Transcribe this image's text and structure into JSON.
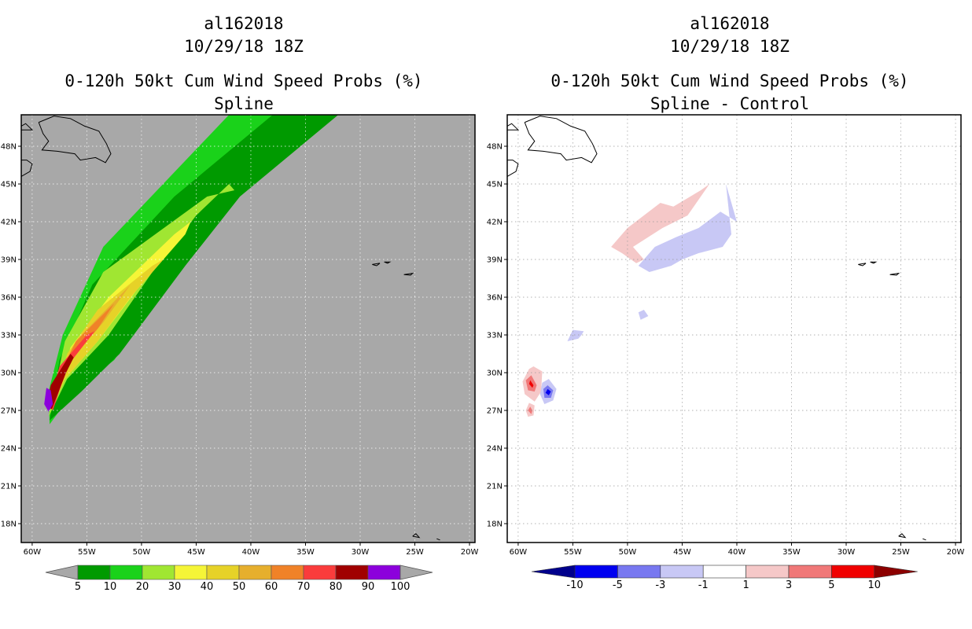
{
  "panels": [
    {
      "storm_id": "al162018",
      "datetime": "10/29/18 18Z",
      "title": "0-120h 50kt Cum Wind Speed Probs (%)",
      "subtitle": "Spline"
    },
    {
      "storm_id": "al162018",
      "datetime": "10/29/18 18Z",
      "title": "0-120h 50kt Cum Wind Speed Probs (%)",
      "subtitle": "Spline - Control"
    }
  ],
  "chart_data": [
    {
      "type": "heatmap",
      "title": "0-120h 50kt Cum Wind Speed Probs (%)",
      "subtitle": "Spline",
      "lon_ticks": [
        "60W",
        "55W",
        "50W",
        "45W",
        "40W",
        "35W",
        "30W",
        "25W",
        "20W"
      ],
      "lat_ticks": [
        "48N",
        "45N",
        "42N",
        "39N",
        "36N",
        "33N",
        "30N",
        "27N",
        "24N",
        "21N",
        "18N"
      ],
      "lon_range": [
        -61,
        -19.5
      ],
      "lat_range": [
        16.5,
        50.5
      ],
      "background": "#a8a8a8",
      "colorbar": {
        "labels": [
          "5",
          "10",
          "20",
          "30",
          "40",
          "50",
          "60",
          "70",
          "80",
          "90",
          "100"
        ],
        "colors": [
          "#009a00",
          "#1ad21a",
          "#a0e632",
          "#f5f537",
          "#e6d228",
          "#e6af2d",
          "#f08228",
          "#fa3c3c",
          "#a00000",
          "#8c00dc"
        ]
      },
      "contours": [
        {
          "level": 5,
          "color": "#1ad21a",
          "lons": [
            -42.0,
            -53.5,
            -57.2,
            -58.5,
            -58.4,
            -56.2,
            -52.5,
            -47.0,
            -43.0,
            -35.0
          ],
          "lats": [
            50.5,
            40.0,
            33.0,
            28.5,
            25.9,
            28.5,
            31.0,
            38.0,
            43.5,
            50.5
          ]
        },
        {
          "level": 10,
          "color": "#009a00",
          "lons": [
            -38.0,
            -47.0,
            -54.5,
            -57.5,
            -58.4,
            -55.5,
            -52.0,
            -46.0,
            -41.0,
            -32.0
          ],
          "lats": [
            50.5,
            44.0,
            37.0,
            31.0,
            26.2,
            28.5,
            31.5,
            38.5,
            44.0,
            50.5
          ]
        },
        {
          "level": 20,
          "color": "#a0e632",
          "lons": [
            -44.0,
            -53.5,
            -57.0,
            -58.5,
            -56.8,
            -53.0,
            -49.0,
            -45.0,
            -42.0,
            -41.5
          ],
          "lats": [
            44.0,
            38.0,
            32.5,
            26.5,
            29.5,
            33.0,
            38.0,
            42.5,
            45.0,
            44.5
          ]
        },
        {
          "level": 30,
          "color": "#f5f537",
          "lons": [
            -47.0,
            -53.0,
            -56.5,
            -58.4,
            -57.0,
            -54.0,
            -50.5,
            -46.0,
            -45.5
          ],
          "lats": [
            41.0,
            36.0,
            32.0,
            26.8,
            29.5,
            32.5,
            36.5,
            41.0,
            42.0
          ]
        },
        {
          "level": 40,
          "color": "#e6d228",
          "lons": [
            -49.0,
            -54.0,
            -56.8,
            -58.3,
            -57.0,
            -54.0,
            -51.0,
            -48.5,
            -48.0
          ],
          "lats": [
            38.5,
            35.0,
            31.5,
            27.0,
            29.5,
            32.5,
            36.0,
            38.5,
            39.0
          ]
        },
        {
          "level": 50,
          "color": "#e6af2d",
          "lons": [
            -51.0,
            -55.5,
            -57.8,
            -58.3,
            -56.5,
            -53.5,
            -51.0,
            -50.0
          ],
          "lats": [
            37.0,
            33.0,
            29.0,
            27.0,
            31.0,
            34.0,
            37.0,
            37.5
          ]
        },
        {
          "level": 60,
          "color": "#f08228",
          "lons": [
            -52.5,
            -56.0,
            -58.0,
            -58.3,
            -56.5,
            -54.0,
            -52.5,
            -52.0
          ],
          "lats": [
            35.5,
            32.5,
            29.0,
            27.0,
            31.0,
            33.5,
            35.5,
            35.8
          ]
        },
        {
          "level": 70,
          "color": "#fa3c3c",
          "lons": [
            -55.0,
            -57.5,
            -58.5,
            -58.1,
            -56.8,
            -55.0,
            -54.3
          ],
          "lats": [
            33.0,
            30.5,
            27.5,
            27.0,
            30.5,
            32.5,
            33.3
          ]
        },
        {
          "level": 80,
          "color": "#a00000",
          "lons": [
            -56.5,
            -58.3,
            -58.7,
            -58.2,
            -56.9,
            -56.2
          ],
          "lats": [
            31.5,
            29.0,
            27.3,
            27.1,
            30.0,
            31.2
          ]
        },
        {
          "level": 90,
          "color": "#8c00dc",
          "lons": [
            -58.7,
            -58.9,
            -58.5,
            -58.1,
            -58.3
          ],
          "lats": [
            28.8,
            27.5,
            26.9,
            27.5,
            28.6
          ]
        }
      ]
    },
    {
      "type": "heatmap",
      "title": "0-120h 50kt Cum Wind Speed Probs (%)",
      "subtitle": "Spline - Control",
      "lon_ticks": [
        "60W",
        "55W",
        "50W",
        "45W",
        "40W",
        "35W",
        "30W",
        "25W",
        "20W"
      ],
      "lat_ticks": [
        "48N",
        "45N",
        "42N",
        "39N",
        "36N",
        "33N",
        "30N",
        "27N",
        "24N",
        "21N",
        "18N"
      ],
      "lon_range": [
        -61,
        -19.5
      ],
      "lat_range": [
        16.5,
        50.5
      ],
      "background": "#ffffff",
      "colorbar": {
        "labels": [
          "-10",
          "-5",
          "-3",
          "-1",
          "1",
          "3",
          "5",
          "10"
        ],
        "colors": [
          "#00008c",
          "#0000f0",
          "#7878f0",
          "#c8c8f5",
          "#ffffff",
          "#f5c8c8",
          "#f07878",
          "#f00000",
          "#8c0000"
        ]
      },
      "contours": [
        {
          "level": 1,
          "color": "#f5c8c8",
          "lons": [
            -45.8,
            -43.3,
            -42.5,
            -44.5,
            -46.8,
            -49.5,
            -48.5,
            -49.2,
            -50.5,
            -51.5,
            -50.0,
            -48.5,
            -47.0
          ],
          "lats": [
            43.2,
            44.5,
            45.0,
            42.5,
            41.5,
            40.0,
            39.0,
            38.7,
            39.5,
            40.0,
            41.5,
            42.5,
            43.5
          ]
        },
        {
          "level": -1,
          "color": "#c8c8f5",
          "lons": [
            -40.0,
            -41.5,
            -43.5,
            -45.5,
            -47.5,
            -49.0,
            -48.0,
            -46.0,
            -45.0,
            -43.5,
            -41.3,
            -40.5,
            -41.0
          ],
          "lats": [
            42.0,
            42.8,
            41.5,
            40.8,
            40.0,
            38.5,
            38.0,
            38.5,
            39.0,
            39.5,
            40.0,
            41.0,
            45.0
          ]
        },
        {
          "level": -1,
          "color": "#c8c8f5",
          "lons": [
            -54.0,
            -55.0,
            -55.5,
            -54.5,
            -54.2
          ],
          "lats": [
            33.3,
            33.4,
            32.5,
            32.7,
            33.0
          ]
        },
        {
          "level": -1,
          "color": "#c8c8f5",
          "lons": [
            -48.5,
            -49.0,
            -48.8,
            -48.1
          ],
          "lats": [
            35.0,
            34.8,
            34.2,
            34.5
          ]
        },
        {
          "level": 3,
          "color": "#f5c8c8",
          "lons": [
            -58.6,
            -57.8,
            -57.9,
            -58.5,
            -59.4,
            -59.6,
            -59.0
          ],
          "lats": [
            30.5,
            30.1,
            28.5,
            27.7,
            28.3,
            29.3,
            30.3
          ]
        },
        {
          "level": 5,
          "color": "#f07878",
          "lons": [
            -58.8,
            -58.3,
            -58.5,
            -59.1,
            -59.3
          ],
          "lats": [
            29.8,
            29.0,
            28.5,
            28.6,
            29.4
          ]
        },
        {
          "level": 10,
          "color": "#f00000",
          "lons": [
            -58.9,
            -58.6,
            -58.7,
            -59.0
          ],
          "lats": [
            29.4,
            29.0,
            28.8,
            29.1
          ]
        },
        {
          "level": -3,
          "color": "#c8c8f5",
          "lons": [
            -57.2,
            -56.5,
            -56.8,
            -57.6,
            -58.0,
            -57.8
          ],
          "lats": [
            29.5,
            28.7,
            27.8,
            27.5,
            28.3,
            29.2
          ]
        },
        {
          "level": -5,
          "color": "#7878f0",
          "lons": [
            -57.3,
            -56.8,
            -57.0,
            -57.6,
            -57.7
          ],
          "lats": [
            29.0,
            28.6,
            28.0,
            28.0,
            28.7
          ]
        },
        {
          "level": -10,
          "color": "#0000f0",
          "lons": [
            -57.3,
            -57.0,
            -57.2,
            -57.5
          ],
          "lats": [
            28.7,
            28.5,
            28.2,
            28.4
          ]
        },
        {
          "level": 3,
          "color": "#f5c8c8",
          "lons": [
            -59.0,
            -58.5,
            -58.6,
            -59.1,
            -59.3
          ],
          "lats": [
            27.6,
            27.4,
            26.6,
            26.5,
            27.0
          ]
        },
        {
          "level": 5,
          "color": "#f07878",
          "lons": [
            -58.9,
            -58.7,
            -58.8,
            -59.1
          ],
          "lats": [
            27.3,
            27.0,
            26.7,
            27.0
          ]
        }
      ]
    }
  ]
}
